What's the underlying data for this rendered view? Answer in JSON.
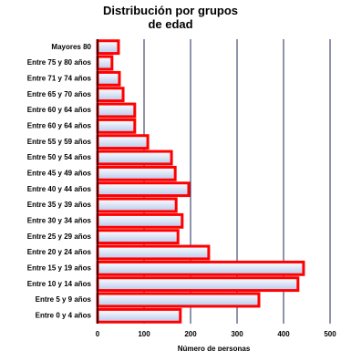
{
  "chart_data": {
    "type": "barh",
    "title": "Distribución por grupos de edad",
    "x_label": "Número de personas",
    "categories": [
      "Mayores 80",
      "Entre 75 y 80 años",
      "Entre 71 y 74 años",
      "Entre 65 y 70 años",
      "Entre 60 y 64 años",
      "Entre 60 y 64 años",
      "Entre 55 y 59 años",
      "Entre 50 y 54 años",
      "Entre 45 y 49 años",
      "Entre 40 y 44 años",
      "Entre 35 y 39 años",
      "Entre 30 y 34 años",
      "Entre 25 y 29 años",
      "Entre 20 y 24 años",
      "Entre 15 y 19 años",
      "Entre 10 y 14 años",
      "Entre 5 y 9 años",
      "Entre 0 y 4 años"
    ],
    "values": [
      45,
      31,
      47,
      55,
      80,
      80,
      108,
      159,
      167,
      196,
      169,
      182,
      173,
      239,
      443,
      431,
      347,
      178
    ],
    "color": "#ff0000",
    "xlim": [
      0,
      500
    ],
    "xticks": [
      0,
      100,
      200,
      300,
      400,
      500
    ],
    "grid": true
  }
}
